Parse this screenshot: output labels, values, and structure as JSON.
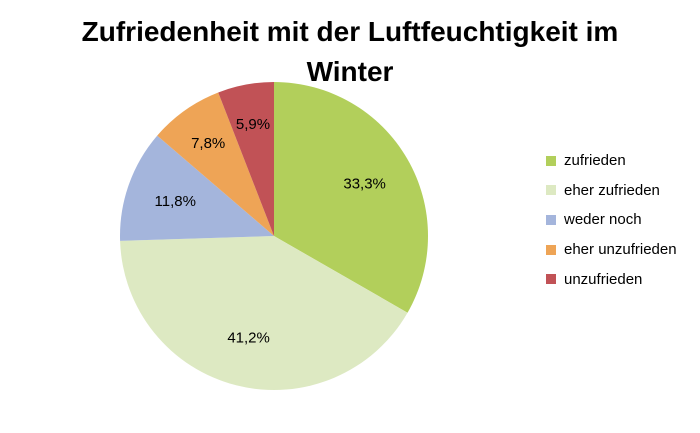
{
  "chart_data": {
    "type": "pie",
    "title_lines": [
      "Zufriedenheit mit der Luftfeuchtigkeit im",
      "Winter"
    ],
    "categories": [
      "zufrieden",
      "eher zufrieden",
      "weder noch",
      "eher unzufrieden",
      "unzufrieden"
    ],
    "values": [
      33.3,
      41.2,
      11.8,
      7.8,
      5.9
    ],
    "data_labels": [
      "33,3%",
      "41,2%",
      "11,8%",
      "7,8%",
      "5,9%"
    ],
    "colors": [
      "#b2cf5b",
      "#dde9c2",
      "#a4b5dc",
      "#eea456",
      "#c15256"
    ],
    "legend_position": "right",
    "start_angle": "12 o'clock, clockwise"
  }
}
